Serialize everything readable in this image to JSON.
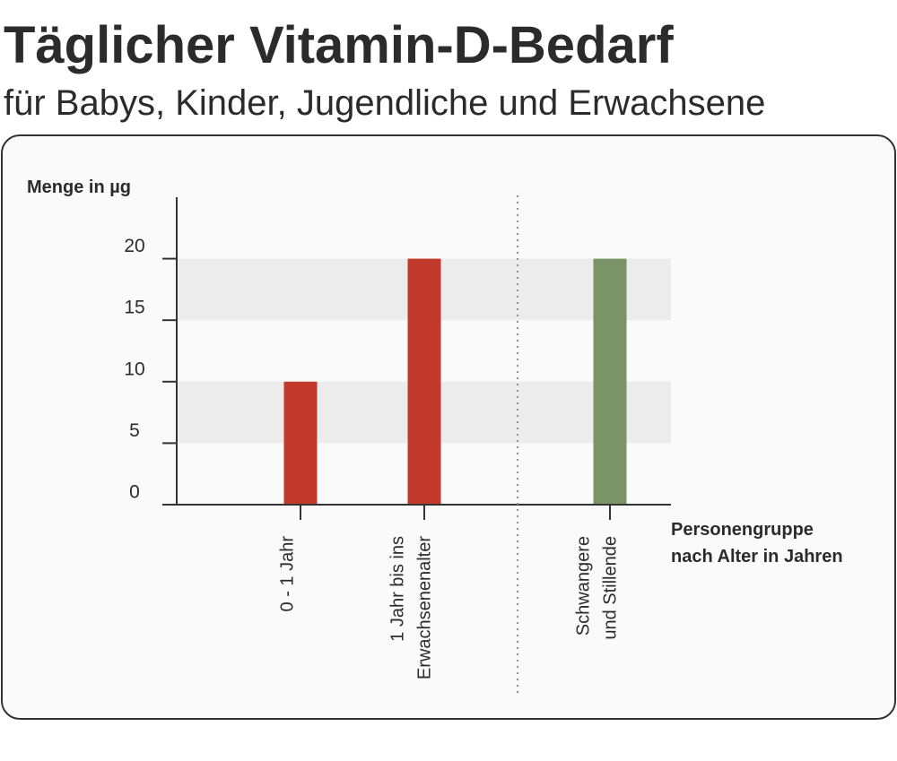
{
  "chart_data": {
    "type": "bar",
    "title": "Täglicher Vitamin-D-Bedarf",
    "subtitle": "für Babys, Kinder, Jugendliche und Erwachsene",
    "ylabel": "Menge in µg",
    "xlabel": [
      "Personengruppe",
      "nach Alter in Jahren"
    ],
    "categories": [
      [
        "0 - 1 Jahr"
      ],
      [
        "1 Jahr bis ins",
        "Erwachsenenalter"
      ],
      [
        "Schwangere",
        "und Stillende"
      ]
    ],
    "values": [
      10,
      20,
      20
    ],
    "colors": [
      "#c0392b",
      "#c0392b",
      "#7a9468"
    ],
    "ylim": [
      0,
      25
    ],
    "yticks": [
      0,
      5,
      10,
      15,
      20
    ],
    "band_color": "#ebeceb"
  }
}
